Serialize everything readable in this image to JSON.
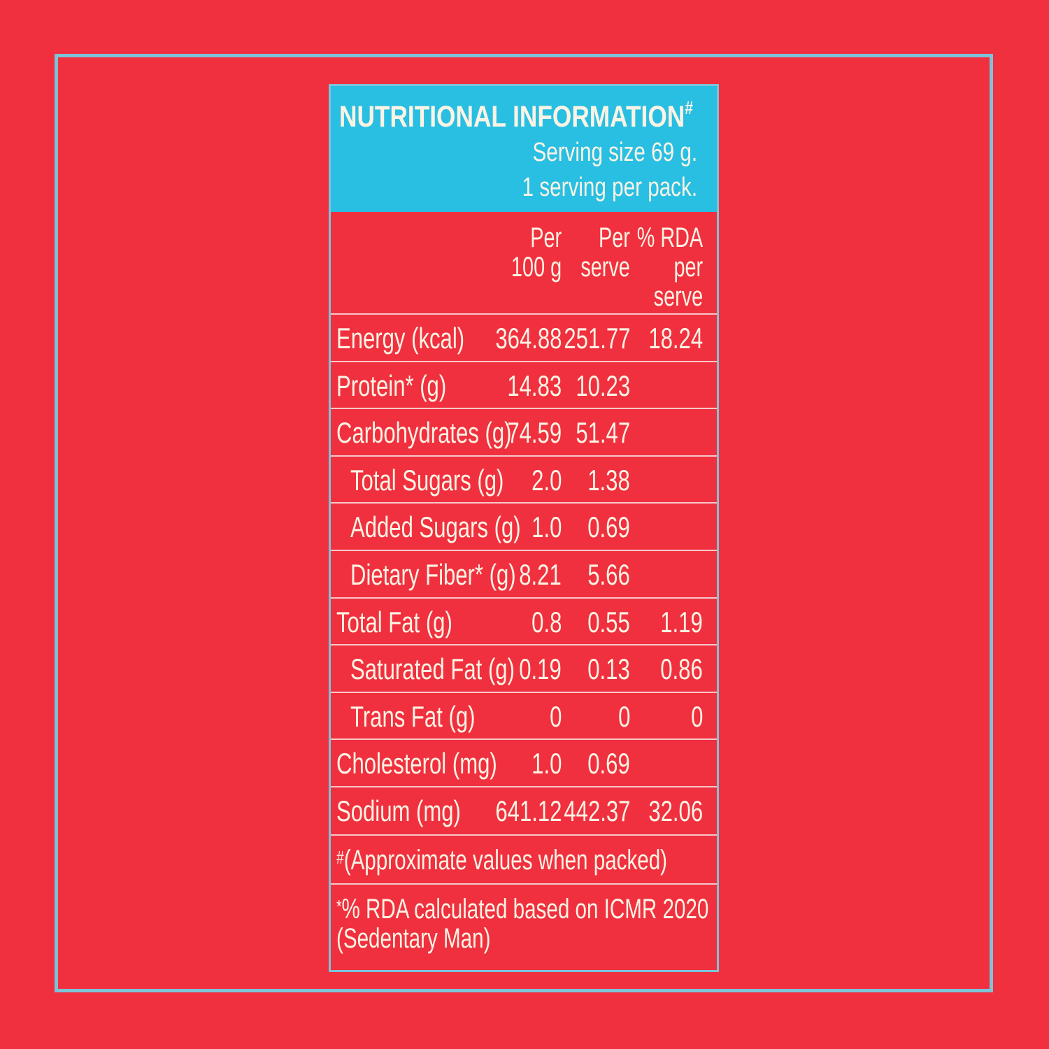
{
  "title": "NUTRITIONAL INFORMATION",
  "title_mark": "#",
  "serving_line1": "Serving size 69 g.",
  "serving_line2": "1 serving per pack.",
  "columns": {
    "per100": [
      "Per",
      "100 g"
    ],
    "perServe": [
      "Per",
      "serve"
    ],
    "rda": [
      "% RDA",
      "per",
      "serve"
    ]
  },
  "rows": [
    {
      "label": "Energy (kcal)",
      "per100": "364.88",
      "perServe": "251.77",
      "rda": "18.24",
      "indent": false
    },
    {
      "label": "Protein* (g)",
      "per100": "14.83",
      "perServe": "10.23",
      "rda": "",
      "indent": false
    },
    {
      "label": "Carbohydrates (g)",
      "per100": "74.59",
      "perServe": "51.47",
      "rda": "",
      "indent": false
    },
    {
      "label": "Total Sugars (g)",
      "per100": "2.0",
      "perServe": "1.38",
      "rda": "",
      "indent": true
    },
    {
      "label": "Added Sugars (g)",
      "per100": "1.0",
      "perServe": "0.69",
      "rda": "",
      "indent": true
    },
    {
      "label": "Dietary Fiber* (g)",
      "per100": "8.21",
      "perServe": "5.66",
      "rda": "",
      "indent": true
    },
    {
      "label": "Total Fat (g)",
      "per100": "0.8",
      "perServe": "0.55",
      "rda": "1.19",
      "indent": false
    },
    {
      "label": "Saturated Fat (g)",
      "per100": "0.19",
      "perServe": "0.13",
      "rda": "0.86",
      "indent": true
    },
    {
      "label": "Trans Fat (g)",
      "per100": "0",
      "perServe": "0",
      "rda": "0",
      "indent": true
    },
    {
      "label": "Cholesterol (mg)",
      "per100": "1.0",
      "perServe": "0.69",
      "rda": "",
      "indent": false
    },
    {
      "label": "Sodium (mg)",
      "per100": "641.12",
      "perServe": "442.37",
      "rda": "32.06",
      "indent": false
    }
  ],
  "footnotes": {
    "note1_mark": "#",
    "note1": "(Approximate values when packed)",
    "note2_mark": "*",
    "note2_line1": "% RDA calculated based on ICMR 2020",
    "note2_line2": "(Sedentary Man)"
  },
  "colors": {
    "background": "#f0303f",
    "accent": "#29bfe3",
    "frame": "#7cc3d8",
    "text": "#fbf3e4"
  }
}
